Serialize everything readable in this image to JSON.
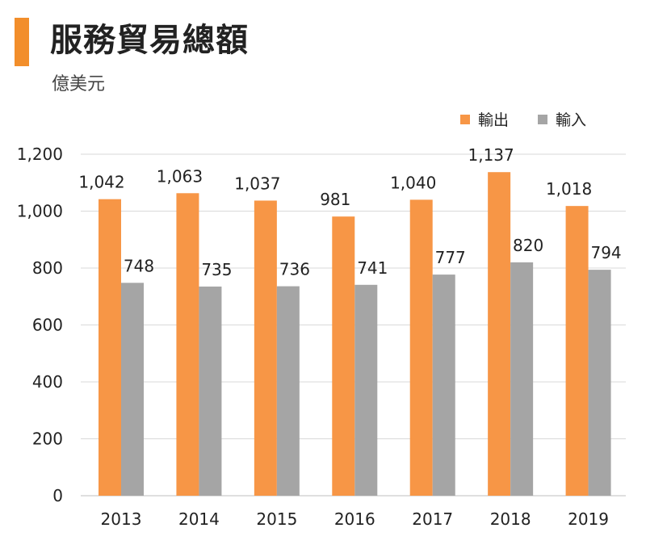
{
  "header": {
    "title": "服務貿易總額",
    "unit": "億美元",
    "accent": "#f28e2b"
  },
  "chart_data": {
    "type": "bar",
    "title": "服務貿易總額",
    "ylabel": "億美元",
    "xlabel": "",
    "categories": [
      "2013",
      "2014",
      "2015",
      "2016",
      "2017",
      "2018",
      "2019"
    ],
    "series": [
      {
        "name": "輸出",
        "color": "#f79646",
        "values": [
          1042,
          1063,
          1037,
          981,
          1040,
          1137,
          1018
        ],
        "labels": [
          "1,042",
          "1,063",
          "1,037",
          "981",
          "1,040",
          "1,137",
          "1,018"
        ]
      },
      {
        "name": "輸入",
        "color": "#a5a5a5",
        "values": [
          748,
          735,
          736,
          741,
          777,
          820,
          794
        ],
        "labels": [
          "748",
          "735",
          "736",
          "741",
          "777",
          "820",
          "794"
        ]
      }
    ],
    "ylim": [
      0,
      1200
    ],
    "yticks": [
      0,
      200,
      400,
      600,
      800,
      1000,
      1200
    ],
    "ytick_labels": [
      "0",
      "200",
      "400",
      "600",
      "800",
      "1,000",
      "1,200"
    ],
    "grid": true,
    "legend_position": "top-right"
  }
}
